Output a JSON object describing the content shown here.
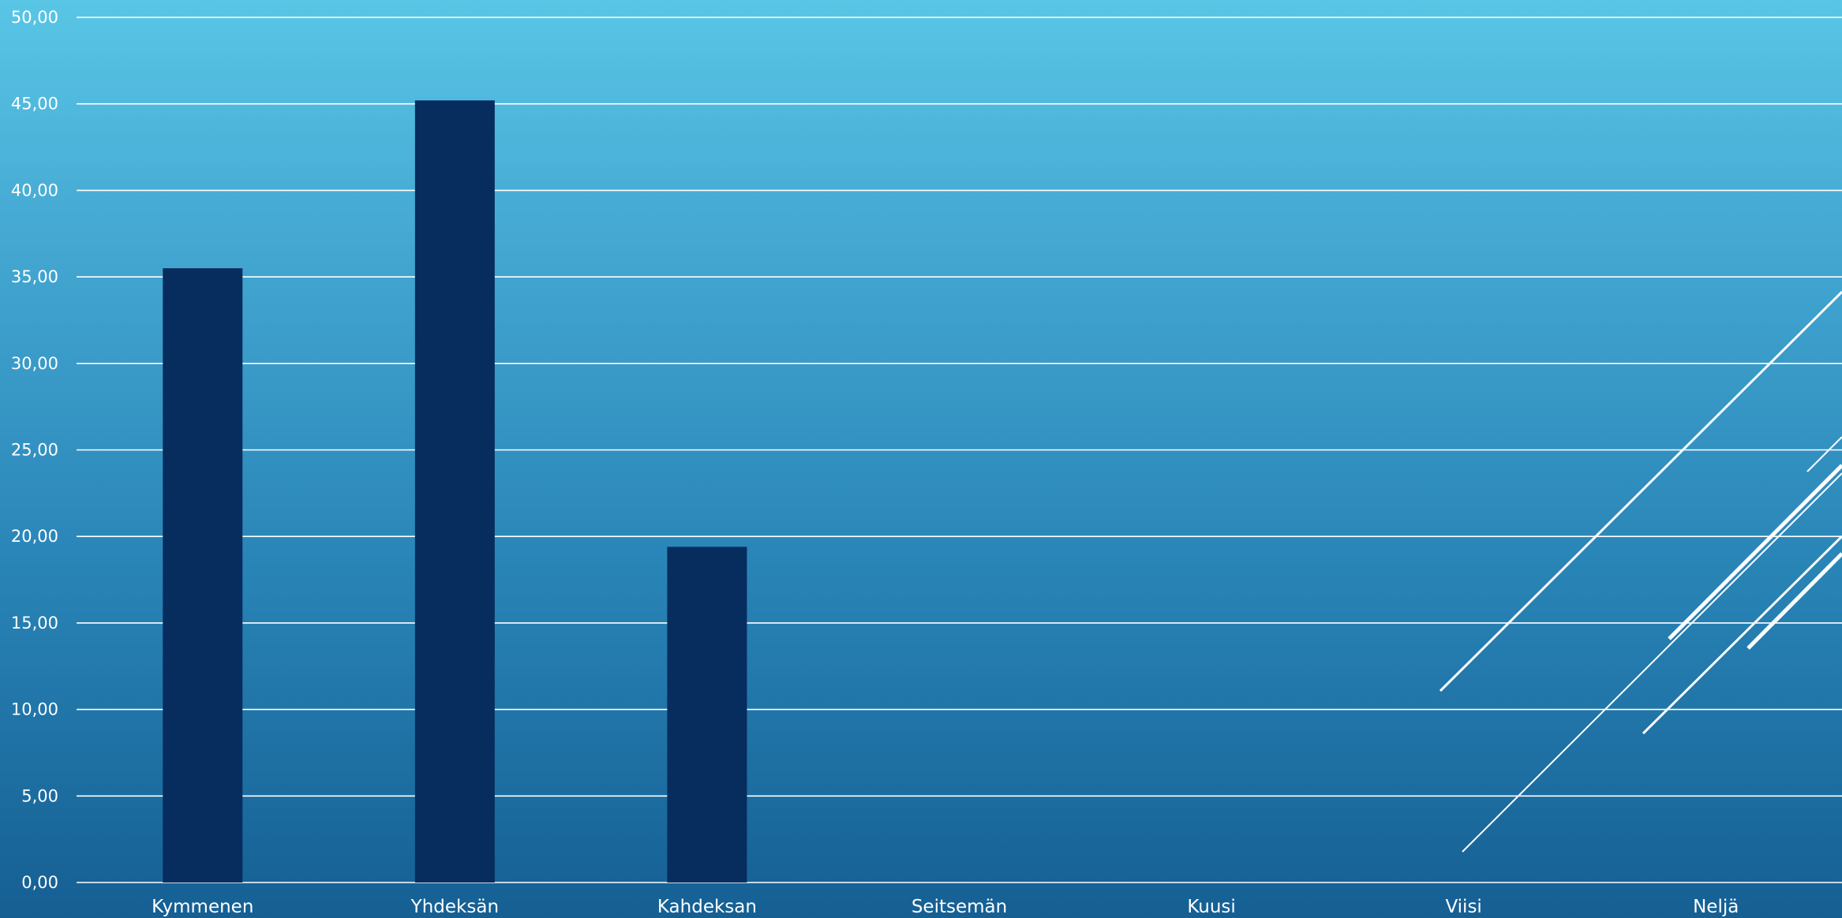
{
  "chart_data": {
    "type": "bar",
    "title": "",
    "xlabel": "",
    "ylabel": "",
    "categories": [
      "Kymmenen",
      "Yhdeksän",
      "Kahdeksan",
      "Seitsemän",
      "Kuusi",
      "Viisi",
      "Neljä"
    ],
    "values": [
      35.5,
      45.2,
      19.4,
      null,
      null,
      null,
      null
    ],
    "ylim": [
      0,
      50
    ],
    "yticks": [
      "0,00",
      "5,00",
      "10,00",
      "15,00",
      "20,00",
      "25,00",
      "30,00",
      "35,00",
      "40,00",
      "45,00",
      "50,00"
    ],
    "ytick_values": [
      0,
      5,
      10,
      15,
      20,
      25,
      30,
      35,
      40,
      45,
      50
    ],
    "grid": true,
    "legend": "none",
    "colors": {
      "bar": "#062d5e",
      "grid": "#ffffff",
      "text": "#ffffff",
      "background_top": "#59c6e6",
      "background_bottom": "#155f93"
    }
  }
}
